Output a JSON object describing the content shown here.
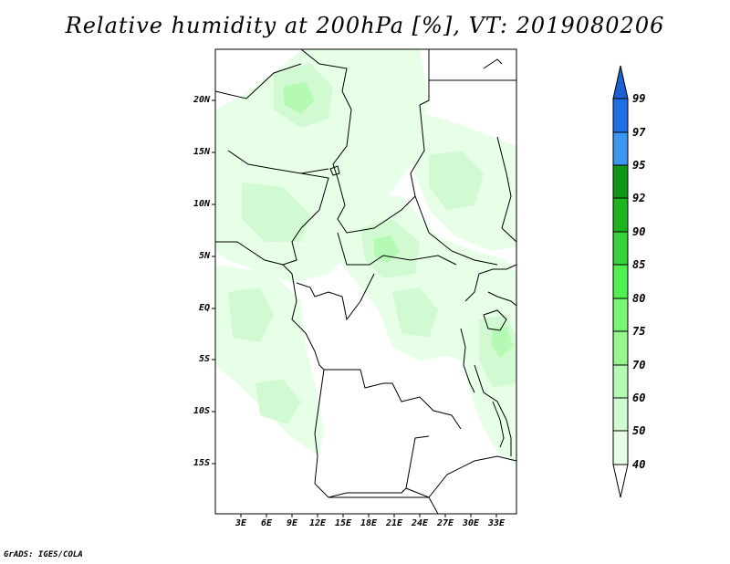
{
  "title": "Relative humidity at 200hPa [%], VT: 2019080206",
  "credit": "GrADS: IGES/COLA",
  "map": {
    "variable": "Relative humidity",
    "level": "200hPa",
    "units": "%",
    "valid_time": "2019080206",
    "lat_labels": [
      "20N",
      "15N",
      "10N",
      "5N",
      "EQ",
      "5S",
      "10S",
      "15S"
    ],
    "lon_labels": [
      "3E",
      "6E",
      "9E",
      "12E",
      "15E",
      "18E",
      "21E",
      "24E",
      "27E",
      "30E",
      "33E"
    ]
  },
  "colorbar": {
    "levels": [
      "99",
      "97",
      "95",
      "92",
      "90",
      "85",
      "80",
      "75",
      "70",
      "60",
      "50",
      "40"
    ],
    "colors": [
      "#1e5fd2",
      "#1e6ee6",
      "#3c96f0",
      "#0f9614",
      "#1eb41e",
      "#37d23c",
      "#50f050",
      "#78f573",
      "#96f58c",
      "#b4fab4",
      "#d2fad2",
      "#e6ffe6",
      "#ffffff"
    ]
  },
  "palette": {
    "light_green": "#e6ffe6",
    "pale_green": "#d2fad2",
    "mid_green": "#b4fab4",
    "border": "#000000"
  }
}
